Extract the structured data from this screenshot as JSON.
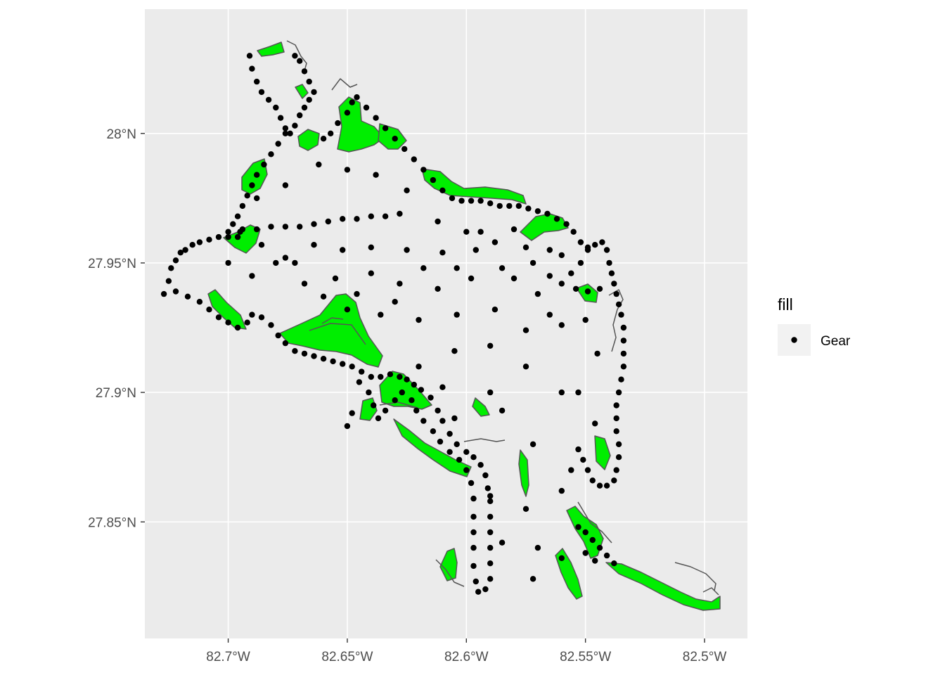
{
  "chart_data": {
    "type": "scatter",
    "title": "",
    "xlabel": "",
    "ylabel": "",
    "xlim": [
      -82.735,
      -82.482
    ],
    "ylim": [
      27.805,
      28.048
    ],
    "x_ticks": [
      {
        "value": -82.7,
        "label": "82.7°W"
      },
      {
        "value": -82.65,
        "label": "82.65°W"
      },
      {
        "value": -82.6,
        "label": "82.6°W"
      },
      {
        "value": -82.55,
        "label": "82.55°W"
      },
      {
        "value": -82.5,
        "label": "82.5°W"
      }
    ],
    "y_ticks": [
      {
        "value": 28.0,
        "label": "28°N"
      },
      {
        "value": 27.95,
        "label": "27.95°N"
      },
      {
        "value": 27.9,
        "label": "27.9°N"
      },
      {
        "value": 27.85,
        "label": "27.85°N"
      }
    ],
    "grid": true,
    "panel_background": "#ebebeb",
    "grid_color": "#ffffff",
    "legend": {
      "title": "fill",
      "position": "right",
      "entries": [
        {
          "label": "Gear",
          "color": "#000000"
        }
      ]
    },
    "layers": [
      {
        "name": "seagrass",
        "fill": "#00ee00",
        "outline": "#555555"
      },
      {
        "name": "points",
        "color": "#000000"
      }
    ],
    "series": [
      {
        "name": "Gear",
        "points": [
          [
            -82.727,
            27.938
          ],
          [
            -82.725,
            27.943
          ],
          [
            -82.724,
            27.948
          ],
          [
            -82.722,
            27.951
          ],
          [
            -82.72,
            27.954
          ],
          [
            -82.718,
            27.955
          ],
          [
            -82.715,
            27.957
          ],
          [
            -82.712,
            27.958
          ],
          [
            -82.708,
            27.959
          ],
          [
            -82.704,
            27.96
          ],
          [
            -82.7,
            27.96
          ],
          [
            -82.696,
            27.96
          ],
          [
            -82.722,
            27.939
          ],
          [
            -82.717,
            27.937
          ],
          [
            -82.712,
            27.935
          ],
          [
            -82.708,
            27.932
          ],
          [
            -82.704,
            27.929
          ],
          [
            -82.7,
            27.927
          ],
          [
            -82.696,
            27.925
          ],
          [
            -82.692,
            27.927
          ],
          [
            -82.69,
            27.93
          ],
          [
            -82.686,
            27.929
          ],
          [
            -82.682,
            27.926
          ],
          [
            -82.679,
            27.922
          ],
          [
            -82.676,
            27.919
          ],
          [
            -82.672,
            27.916
          ],
          [
            -82.668,
            27.915
          ],
          [
            -82.664,
            27.914
          ],
          [
            -82.66,
            27.913
          ],
          [
            -82.656,
            27.912
          ],
          [
            -82.652,
            27.911
          ],
          [
            -82.648,
            27.91
          ],
          [
            -82.644,
            27.908
          ],
          [
            -82.64,
            27.906
          ],
          [
            -82.636,
            27.906
          ],
          [
            -82.632,
            27.907
          ],
          [
            -82.628,
            27.906
          ],
          [
            -82.625,
            27.905
          ],
          [
            -82.622,
            27.903
          ],
          [
            -82.619,
            27.901
          ],
          [
            -82.615,
            27.898
          ],
          [
            -82.612,
            27.893
          ],
          [
            -82.61,
            27.889
          ],
          [
            -82.607,
            27.884
          ],
          [
            -82.604,
            27.88
          ],
          [
            -82.6,
            27.877
          ],
          [
            -82.597,
            27.875
          ],
          [
            -82.594,
            27.872
          ],
          [
            -82.592,
            27.868
          ],
          [
            -82.591,
            27.863
          ],
          [
            -82.59,
            27.858
          ],
          [
            -82.59,
            27.852
          ],
          [
            -82.59,
            27.846
          ],
          [
            -82.59,
            27.84
          ],
          [
            -82.59,
            27.834
          ],
          [
            -82.59,
            27.828
          ],
          [
            -82.592,
            27.824
          ],
          [
            -82.595,
            27.823
          ],
          [
            -82.596,
            27.827
          ],
          [
            -82.597,
            27.833
          ],
          [
            -82.597,
            27.84
          ],
          [
            -82.597,
            27.846
          ],
          [
            -82.597,
            27.852
          ],
          [
            -82.597,
            27.859
          ],
          [
            -82.598,
            27.865
          ],
          [
            -82.6,
            27.87
          ],
          [
            -82.603,
            27.874
          ],
          [
            -82.607,
            27.877
          ],
          [
            -82.611,
            27.881
          ],
          [
            -82.614,
            27.885
          ],
          [
            -82.618,
            27.889
          ],
          [
            -82.621,
            27.893
          ],
          [
            -82.623,
            27.897
          ],
          [
            -82.627,
            27.9
          ],
          [
            -82.63,
            27.897
          ],
          [
            -82.634,
            27.893
          ],
          [
            -82.637,
            27.89
          ],
          [
            -82.639,
            27.895
          ],
          [
            -82.641,
            27.9
          ],
          [
            -82.645,
            27.904
          ],
          [
            -82.648,
            27.892
          ],
          [
            -82.65,
            27.887
          ],
          [
            -82.691,
            28.03
          ],
          [
            -82.69,
            28.025
          ],
          [
            -82.688,
            28.02
          ],
          [
            -82.686,
            28.016
          ],
          [
            -82.683,
            28.013
          ],
          [
            -82.68,
            28.01
          ],
          [
            -82.678,
            28.006
          ],
          [
            -82.676,
            28.002
          ],
          [
            -82.674,
            28.0
          ],
          [
            -82.672,
            28.003
          ],
          [
            -82.67,
            28.007
          ],
          [
            -82.668,
            28.01
          ],
          [
            -82.666,
            28.013
          ],
          [
            -82.664,
            28.016
          ],
          [
            -82.666,
            28.02
          ],
          [
            -82.668,
            28.024
          ],
          [
            -82.67,
            28.028
          ],
          [
            -82.672,
            28.03
          ],
          [
            -82.676,
            28.0
          ],
          [
            -82.679,
            27.996
          ],
          [
            -82.682,
            27.992
          ],
          [
            -82.685,
            27.988
          ],
          [
            -82.688,
            27.984
          ],
          [
            -82.69,
            27.98
          ],
          [
            -82.692,
            27.976
          ],
          [
            -82.694,
            27.972
          ],
          [
            -82.696,
            27.968
          ],
          [
            -82.698,
            27.965
          ],
          [
            -82.695,
            27.962
          ],
          [
            -82.66,
            27.998
          ],
          [
            -82.657,
            28.0
          ],
          [
            -82.654,
            28.004
          ],
          [
            -82.65,
            28.008
          ],
          [
            -82.648,
            28.012
          ],
          [
            -82.646,
            28.014
          ],
          [
            -82.642,
            28.01
          ],
          [
            -82.638,
            28.006
          ],
          [
            -82.634,
            28.002
          ],
          [
            -82.63,
            27.998
          ],
          [
            -82.626,
            27.994
          ],
          [
            -82.622,
            27.99
          ],
          [
            -82.618,
            27.986
          ],
          [
            -82.614,
            27.982
          ],
          [
            -82.61,
            27.978
          ],
          [
            -82.606,
            27.975
          ],
          [
            -82.602,
            27.974
          ],
          [
            -82.598,
            27.974
          ],
          [
            -82.594,
            27.974
          ],
          [
            -82.59,
            27.973
          ],
          [
            -82.586,
            27.972
          ],
          [
            -82.582,
            27.972
          ],
          [
            -82.578,
            27.972
          ],
          [
            -82.574,
            27.971
          ],
          [
            -82.57,
            27.97
          ],
          [
            -82.566,
            27.969
          ],
          [
            -82.562,
            27.967
          ],
          [
            -82.558,
            27.965
          ],
          [
            -82.555,
            27.962
          ],
          [
            -82.552,
            27.958
          ],
          [
            -82.549,
            27.956
          ],
          [
            -82.546,
            27.957
          ],
          [
            -82.543,
            27.958
          ],
          [
            -82.541,
            27.955
          ],
          [
            -82.54,
            27.95
          ],
          [
            -82.539,
            27.946
          ],
          [
            -82.538,
            27.942
          ],
          [
            -82.537,
            27.938
          ],
          [
            -82.536,
            27.934
          ],
          [
            -82.535,
            27.93
          ],
          [
            -82.534,
            27.925
          ],
          [
            -82.534,
            27.92
          ],
          [
            -82.534,
            27.915
          ],
          [
            -82.534,
            27.91
          ],
          [
            -82.535,
            27.905
          ],
          [
            -82.536,
            27.9
          ],
          [
            -82.537,
            27.895
          ],
          [
            -82.537,
            27.89
          ],
          [
            -82.537,
            27.885
          ],
          [
            -82.536,
            27.88
          ],
          [
            -82.536,
            27.875
          ],
          [
            -82.537,
            27.87
          ],
          [
            -82.538,
            27.866
          ],
          [
            -82.541,
            27.864
          ],
          [
            -82.544,
            27.864
          ],
          [
            -82.547,
            27.866
          ],
          [
            -82.549,
            27.87
          ],
          [
            -82.551,
            27.874
          ],
          [
            -82.553,
            27.878
          ],
          [
            -82.549,
            27.955
          ],
          [
            -82.552,
            27.95
          ],
          [
            -82.556,
            27.946
          ],
          [
            -82.56,
            27.942
          ],
          [
            -82.554,
            27.94
          ],
          [
            -82.549,
            27.939
          ],
          [
            -82.544,
            27.94
          ],
          [
            -82.56,
            27.953
          ],
          [
            -82.565,
            27.955
          ],
          [
            -82.553,
            27.848
          ],
          [
            -82.55,
            27.846
          ],
          [
            -82.547,
            27.843
          ],
          [
            -82.544,
            27.84
          ],
          [
            -82.541,
            27.837
          ],
          [
            -82.538,
            27.834
          ],
          [
            -82.55,
            27.838
          ],
          [
            -82.546,
            27.835
          ],
          [
            -82.7,
            27.962
          ],
          [
            -82.694,
            27.963
          ],
          [
            -82.688,
            27.963
          ],
          [
            -82.682,
            27.964
          ],
          [
            -82.676,
            27.964
          ],
          [
            -82.67,
            27.964
          ],
          [
            -82.664,
            27.965
          ],
          [
            -82.658,
            27.966
          ],
          [
            -82.652,
            27.967
          ],
          [
            -82.646,
            27.967
          ],
          [
            -82.64,
            27.968
          ],
          [
            -82.634,
            27.968
          ],
          [
            -82.628,
            27.969
          ],
          [
            -82.688,
            27.975
          ],
          [
            -82.676,
            27.98
          ],
          [
            -82.662,
            27.988
          ],
          [
            -82.65,
            27.986
          ],
          [
            -82.638,
            27.984
          ],
          [
            -82.625,
            27.978
          ],
          [
            -82.612,
            27.966
          ],
          [
            -82.6,
            27.962
          ],
          [
            -82.588,
            27.958
          ],
          [
            -82.575,
            27.956
          ],
          [
            -82.565,
            27.945
          ],
          [
            -82.58,
            27.944
          ],
          [
            -82.598,
            27.944
          ],
          [
            -82.612,
            27.94
          ],
          [
            -82.628,
            27.942
          ],
          [
            -82.64,
            27.946
          ],
          [
            -82.655,
            27.944
          ],
          [
            -82.668,
            27.942
          ],
          [
            -82.68,
            27.95
          ],
          [
            -82.69,
            27.945
          ],
          [
            -82.676,
            27.952
          ],
          [
            -82.664,
            27.957
          ],
          [
            -82.652,
            27.955
          ],
          [
            -82.64,
            27.956
          ],
          [
            -82.625,
            27.955
          ],
          [
            -82.61,
            27.954
          ],
          [
            -82.596,
            27.955
          ],
          [
            -82.585,
            27.948
          ],
          [
            -82.57,
            27.938
          ],
          [
            -82.588,
            27.932
          ],
          [
            -82.604,
            27.93
          ],
          [
            -82.62,
            27.928
          ],
          [
            -82.636,
            27.93
          ],
          [
            -82.65,
            27.932
          ],
          [
            -82.56,
            27.926
          ],
          [
            -82.575,
            27.924
          ],
          [
            -82.59,
            27.918
          ],
          [
            -82.605,
            27.916
          ],
          [
            -82.575,
            27.91
          ],
          [
            -82.56,
            27.9
          ],
          [
            -82.59,
            27.9
          ],
          [
            -82.61,
            27.902
          ],
          [
            -82.62,
            27.91
          ],
          [
            -82.605,
            27.89
          ],
          [
            -82.585,
            27.893
          ],
          [
            -82.572,
            27.88
          ],
          [
            -82.59,
            27.86
          ],
          [
            -82.575,
            27.855
          ],
          [
            -82.56,
            27.862
          ],
          [
            -82.556,
            27.87
          ],
          [
            -82.585,
            27.842
          ],
          [
            -82.57,
            27.84
          ],
          [
            -82.56,
            27.836
          ],
          [
            -82.572,
            27.828
          ],
          [
            -82.546,
            27.888
          ],
          [
            -82.553,
            27.9
          ],
          [
            -82.545,
            27.915
          ],
          [
            -82.55,
            27.928
          ],
          [
            -82.565,
            27.93
          ],
          [
            -82.7,
            27.95
          ],
          [
            -82.686,
            27.957
          ],
          [
            -82.672,
            27.95
          ],
          [
            -82.66,
            27.937
          ],
          [
            -82.646,
            27.938
          ],
          [
            -82.63,
            27.935
          ],
          [
            -82.618,
            27.948
          ],
          [
            -82.604,
            27.948
          ],
          [
            -82.594,
            27.962
          ],
          [
            -82.58,
            27.963
          ],
          [
            -82.572,
            27.95
          ]
        ]
      }
    ]
  }
}
